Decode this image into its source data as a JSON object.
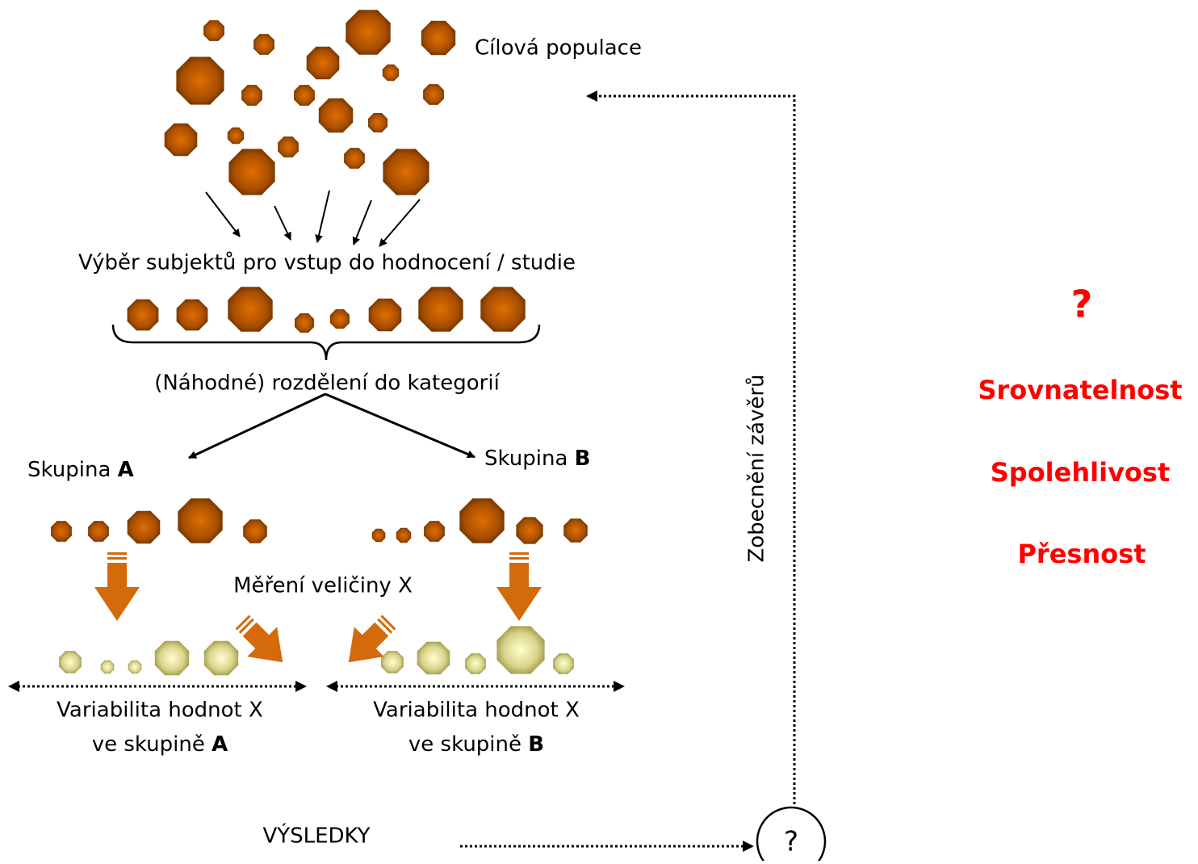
{
  "population_label": "Cílová populace",
  "selection_label": "Výběr subjektů pro vstup do hodnocení / studie",
  "allocation_label": "(Náhodné) rozdělení do kategorií",
  "group_a": {
    "prefix": "Skupina",
    "letter": "A"
  },
  "group_b": {
    "prefix": "Skupina",
    "letter": "B"
  },
  "measurement_label": "Měření veličiny X",
  "variability_a": {
    "line1": "Variabilita hodnot X",
    "line2_prefix": "ve skupině",
    "letter": "A"
  },
  "variability_b": {
    "line1": "Variabilita hodnot X",
    "line2_prefix": "ve skupině",
    "letter": "B"
  },
  "results_label": "VÝSLEDKY",
  "question_node": "?",
  "generalization_label": "Zobecnění závěrů",
  "side_panel": {
    "question": "?",
    "items": [
      "Srovnatelnost",
      "Spolehlivost",
      "Přesnost"
    ]
  }
}
